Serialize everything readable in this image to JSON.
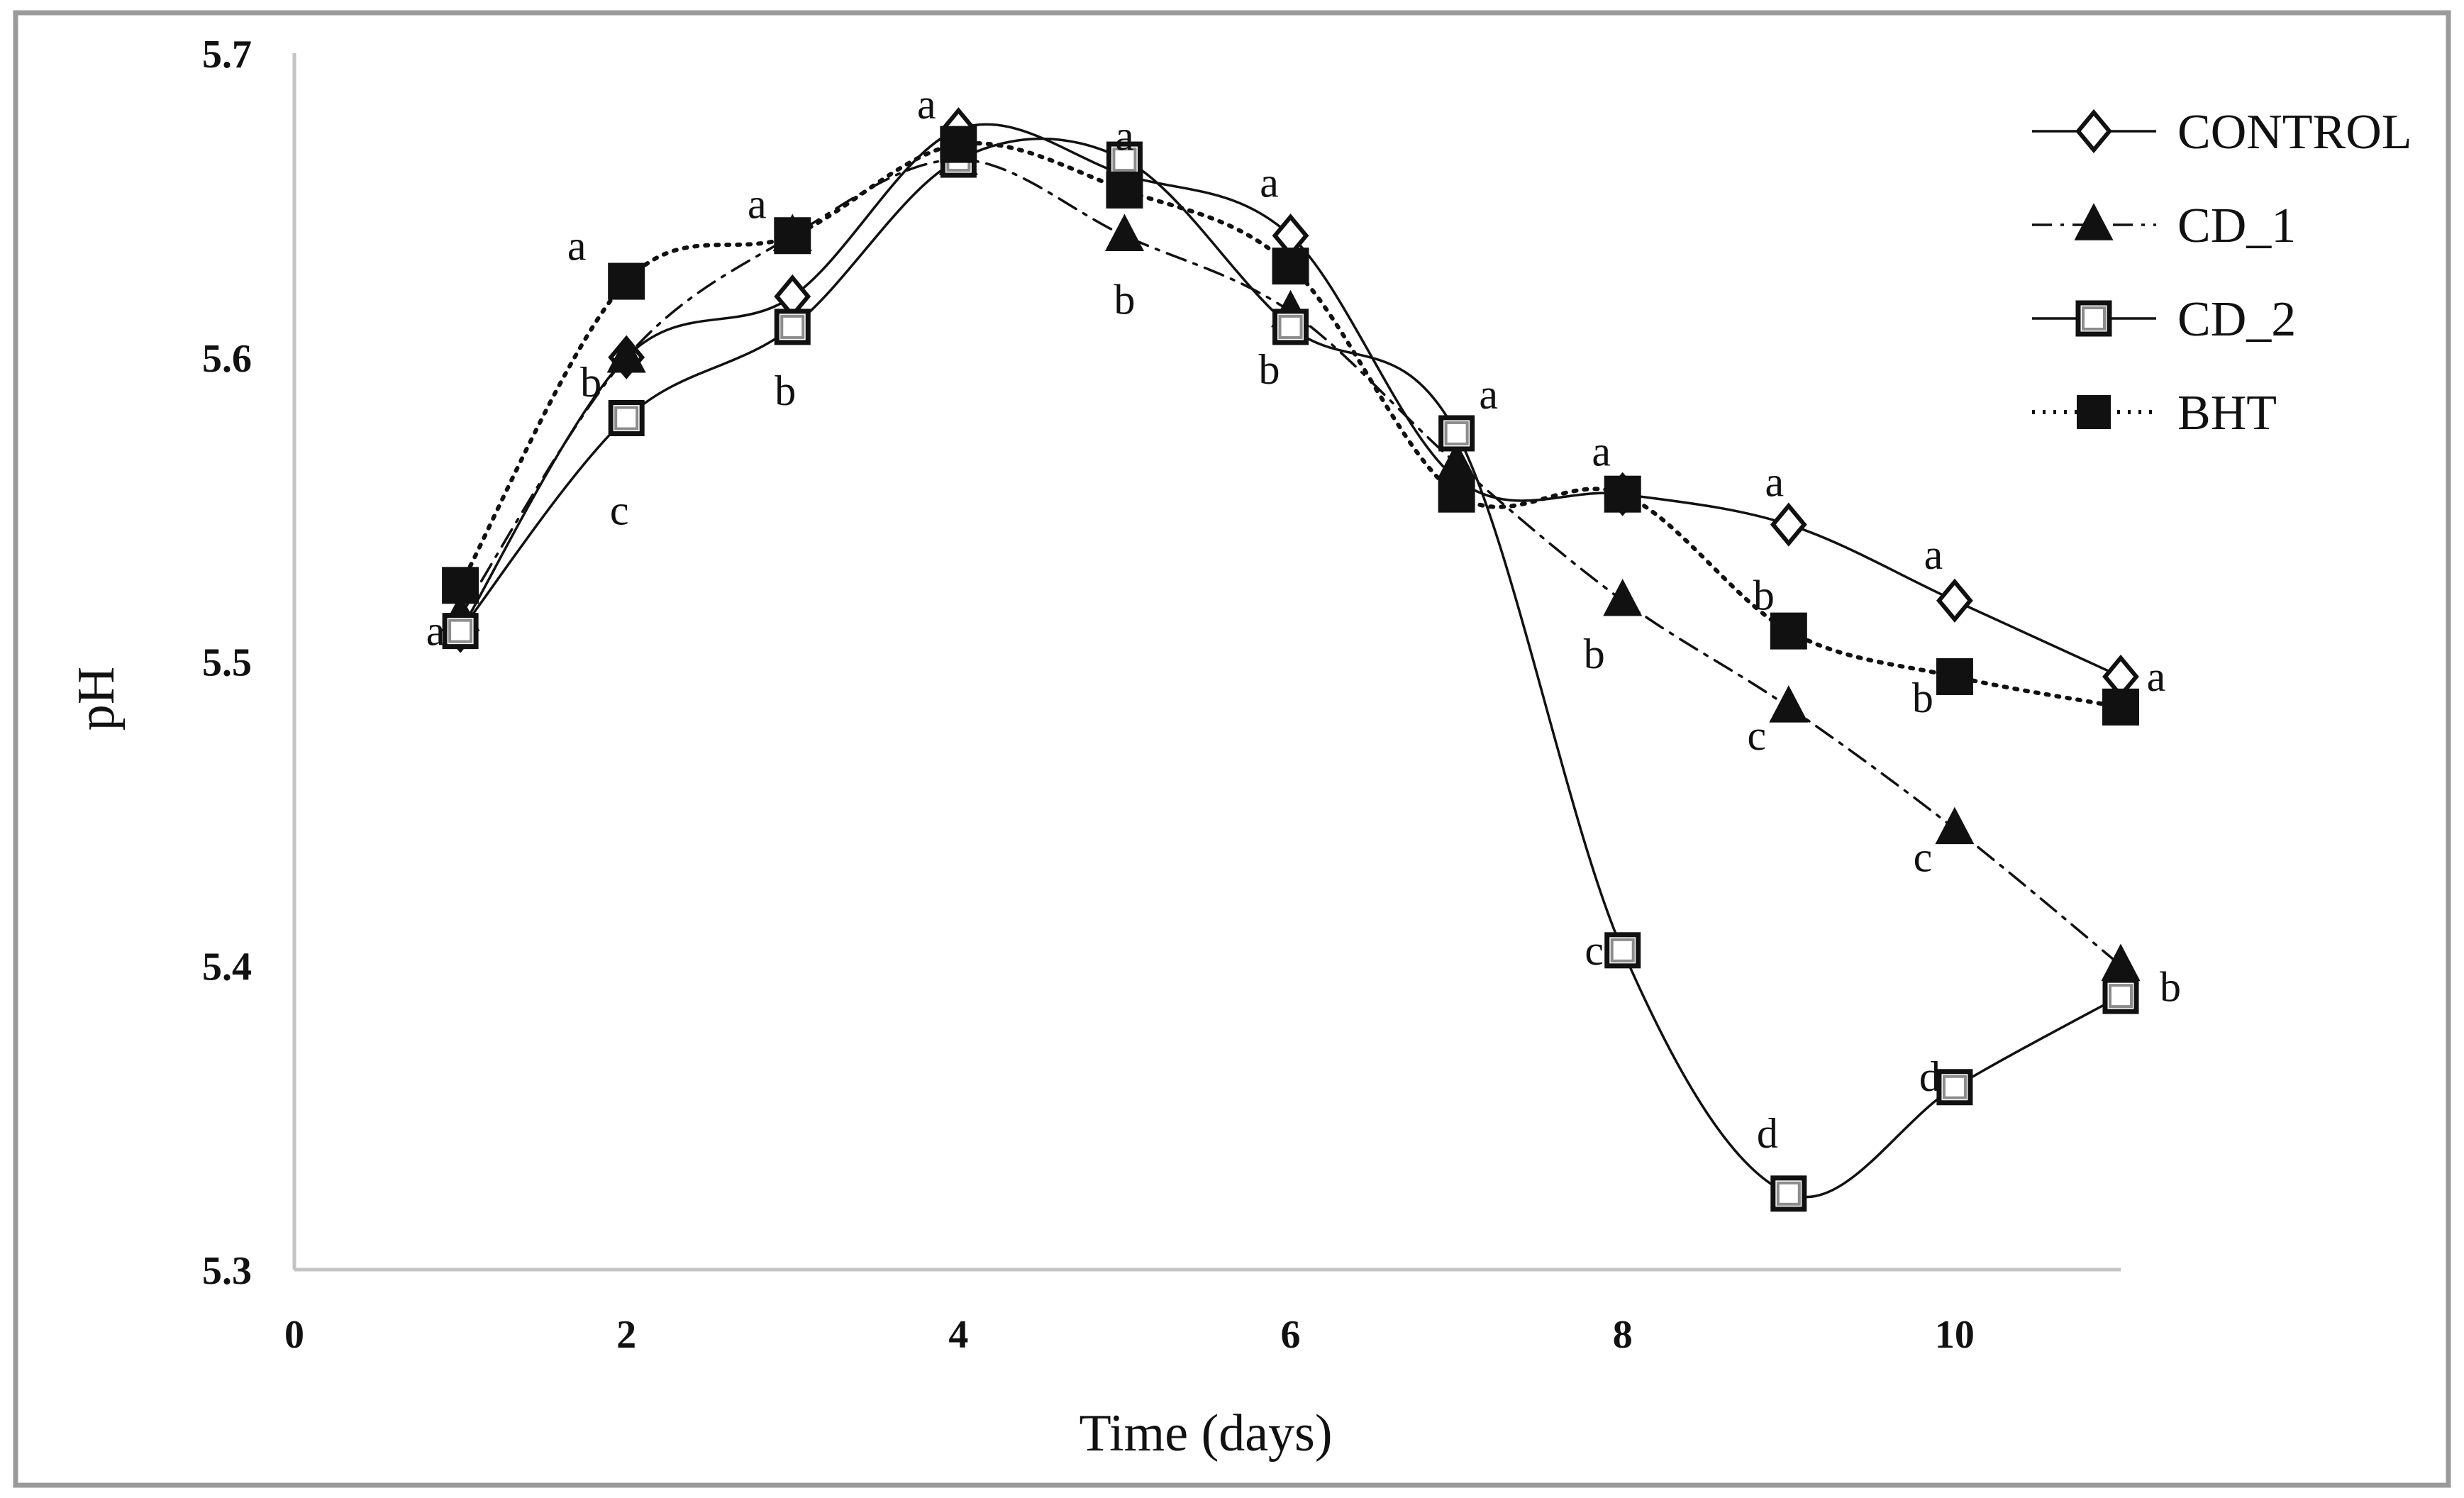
{
  "chart_data": {
    "type": "line",
    "xlabel": "Time (days)",
    "ylabel": "pH",
    "xlim": [
      0,
      11
    ],
    "ylim": [
      5.3,
      5.7
    ],
    "x_ticks": [
      "0",
      "2",
      "4",
      "6",
      "8",
      "10"
    ],
    "y_ticks": [
      "5.3",
      "5.4",
      "5.5",
      "5.6",
      "5.7"
    ],
    "grid": false,
    "legend_position": "top-right",
    "x": [
      1,
      2,
      3,
      4,
      5,
      6,
      7,
      8,
      9,
      10,
      11
    ],
    "series": [
      {
        "name": "CONTROL",
        "marker": "open-diamond",
        "line": "solid",
        "values": [
          5.51,
          5.6,
          5.62,
          5.675,
          5.66,
          5.64,
          5.56,
          5.555,
          5.545,
          5.52,
          5.495
        ],
        "letters": [
          "a",
          "",
          "",
          "a",
          "a",
          "a",
          "",
          "a",
          "a",
          "a",
          "a"
        ]
      },
      {
        "name": "CD_1",
        "marker": "filled-triangle",
        "line": "dash-dot",
        "values": [
          5.515,
          5.6,
          5.64,
          5.665,
          5.64,
          5.615,
          5.565,
          5.52,
          5.485,
          5.445,
          5.4
        ],
        "letters": [
          "",
          "b",
          "",
          "",
          "b",
          "",
          "",
          "b",
          "c",
          "c",
          "b"
        ]
      },
      {
        "name": "CD_2",
        "marker": "open-square",
        "line": "solid",
        "values": [
          5.51,
          5.58,
          5.61,
          5.665,
          5.665,
          5.61,
          5.575,
          5.405,
          5.325,
          5.36,
          5.39
        ],
        "letters": [
          "",
          "c",
          "b",
          "",
          "",
          "b",
          "a",
          "c",
          "d",
          "d",
          ""
        ]
      },
      {
        "name": "BHT",
        "marker": "filled-square",
        "line": "dotted",
        "values": [
          5.525,
          5.625,
          5.64,
          5.67,
          5.655,
          5.63,
          5.555,
          5.555,
          5.51,
          5.495,
          5.485
        ],
        "letters": [
          "",
          "a",
          "a",
          "",
          "",
          "",
          "",
          "",
          "b",
          "b",
          ""
        ]
      }
    ]
  }
}
